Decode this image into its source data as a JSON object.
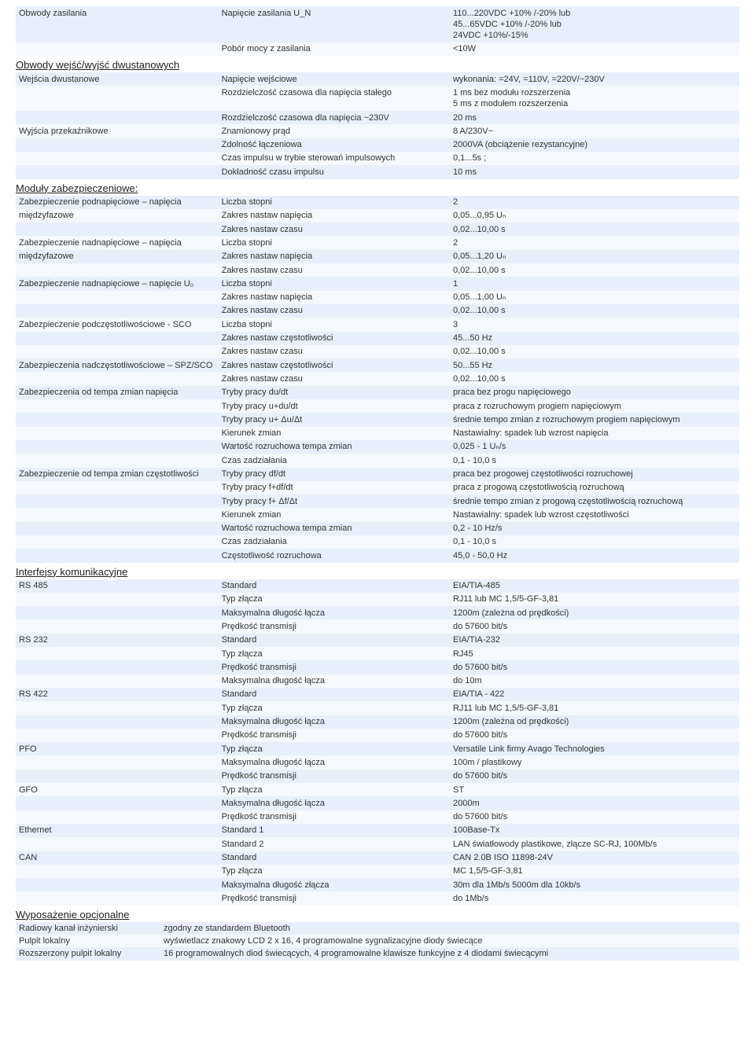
{
  "sections": [
    {
      "title": null,
      "rows": [
        {
          "a": "Obwody zasilania",
          "b": "Napięcie zasilania U_N",
          "c": "110...220VDC +10% /-20% lub\n45...65VDC +10% /-20% lub\n24VDC +10%/-15%"
        },
        {
          "a": "",
          "b": "Pobór mocy z zasilania",
          "c": "<10W"
        }
      ]
    },
    {
      "title": "Obwody wejść/wyjść dwustanowych",
      "rows": [
        {
          "a": "Wejścia dwustanowe",
          "b": "Napięcie wejściowe",
          "c": "wykonania: =24V, =110V, =220V/~230V"
        },
        {
          "a": "",
          "b": "Rozdzielczość czasowa dla napięcia stałego",
          "c": "1 ms bez modułu rozszerzenia\n5 ms z modułem rozszerzenia"
        },
        {
          "a": "",
          "b": "Rozdzielczość czasowa dla napięcia ~230V",
          "c": "20 ms"
        },
        {
          "a": "Wyjścia przekaźnikowe",
          "b": "Znamionowy prąd",
          "c": "8 A/230V~"
        },
        {
          "a": "",
          "b": "Zdolność łączeniowa",
          "c": "2000VA (obciążenie rezystancyjne)"
        },
        {
          "a": "",
          "b": "Czas impulsu w trybie sterowań impulsowych",
          "c": "0,1...5s ;"
        },
        {
          "a": "",
          "b": "Dokładność czasu impulsu",
          "c": "10 ms"
        }
      ]
    },
    {
      "title": "Moduły zabezpieczeniowe:",
      "rows": [
        {
          "a": "Zabezpieczenie podnapięciowe – napięcia",
          "b": "Liczba stopni",
          "c": "2"
        },
        {
          "a": "międzyfazowe",
          "b": "Zakres nastaw napięcia",
          "c": "0,05...0,95 Uₙ"
        },
        {
          "a": "",
          "b": "Zakres nastaw czasu",
          "c": "0,02...10,00 s"
        },
        {
          "a": "Zabezpieczenie nadnapięciowe – napięcia",
          "b": "Liczba stopni",
          "c": "2"
        },
        {
          "a": "międzyfazowe",
          "b": "Zakres nastaw napięcia",
          "c": "0,05...1,20 Uₙ"
        },
        {
          "a": "",
          "b": "Zakres nastaw czasu",
          "c": "0,02...10,00 s"
        },
        {
          "a": "Zabezpieczenie nadnapięciowe – napięcie U₀",
          "b": "Liczba stopni",
          "c": "1"
        },
        {
          "a": "",
          "b": "Zakres nastaw napięcia",
          "c": "0,05...1,00 Uₙ"
        },
        {
          "a": "",
          "b": "Zakres nastaw czasu",
          "c": "0,02...10,00 s"
        },
        {
          "a": "Zabezpieczenie podczęstotliwościowe - SCO",
          "b": "Liczba stopni",
          "c": "3"
        },
        {
          "a": "",
          "b": "Zakres nastaw częstotliwości",
          "c": "45...50 Hz"
        },
        {
          "a": "",
          "b": "Zakres nastaw czasu",
          "c": "0,02...10,00 s"
        },
        {
          "a": "Zabezpieczenia nadczęstotliwościowe – SPZ/SCO",
          "b": "Zakres nastaw częstotliwości",
          "c": "50...55 Hz"
        },
        {
          "a": "",
          "b": "Zakres nastaw czasu",
          "c": "0,02...10,00 s"
        },
        {
          "a": "Zabezpieczenia od tempa zmian napięcia",
          "b": "Tryby pracy du/dt",
          "c": "praca bez progu napięciowego"
        },
        {
          "a": "",
          "b": "Tryby pracy u+du/dt",
          "c": "praca z rozruchowym progiem napięciowym"
        },
        {
          "a": "",
          "b": "Tryby pracy u+ Δu/Δt",
          "c": "średnie tempo zmian z rozruchowym progiem napięciowym"
        },
        {
          "a": "",
          "b": "Kierunek zmian",
          "c": "Nastawialny: spadek lub wzrost napięcia"
        },
        {
          "a": "",
          "b": "Wartość rozruchowa tempa zmian",
          "c": "0,025 - 1 Uₙ/s"
        },
        {
          "a": "",
          "b": "Czas zadziałania",
          "c": "0,1 - 10,0 s"
        },
        {
          "a": "Zabezpieczenie od tempa zmian częstotliwości",
          "b": "Tryby pracy df/dt",
          "c": "praca bez progowej częstotliwości rozruchowej"
        },
        {
          "a": "",
          "b": "Tryby pracy f+df/dt",
          "c": "praca z progową częstotliwością rozruchową"
        },
        {
          "a": "",
          "b": "Tryby pracy f+ Δf/Δt",
          "c": "średnie tempo zmian z progową częstotliwością rozruchową"
        },
        {
          "a": "",
          "b": "Kierunek zmian",
          "c": "Nastawialny: spadek lub wzrost częstotliwości"
        },
        {
          "a": "",
          "b": "Wartość rozruchowa tempa zmian",
          "c": "0,2 - 10 Hz/s"
        },
        {
          "a": "",
          "b": "Czas zadziałania",
          "c": "0,1 - 10,0 s"
        },
        {
          "a": "",
          "b": "Częstotliwość rozruchowa",
          "c": "45,0 - 50,0 Hz"
        }
      ]
    },
    {
      "title": "Interfejsy komunikacyjne",
      "rows": [
        {
          "a": "RS 485",
          "b": "Standard",
          "c": "EIA/TIA-485"
        },
        {
          "a": "",
          "b": "Typ złącza",
          "c": "RJ11 lub MC 1,5/5-GF-3,81"
        },
        {
          "a": "",
          "b": "Maksymalna długość łącza",
          "c": "1200m (zależna od prędkości)"
        },
        {
          "a": "",
          "b": "Prędkość transmisji",
          "c": "do 57600 bit/s"
        },
        {
          "a": "RS 232",
          "b": "Standard",
          "c": "EIA/TIA-232"
        },
        {
          "a": "",
          "b": "Typ złącza",
          "c": "RJ45"
        },
        {
          "a": "",
          "b": "Prędkość transmisji",
          "c": "do 57600 bit/s"
        },
        {
          "a": "",
          "b": "Maksymalna długość łącza",
          "c": "do 10m"
        },
        {
          "a": "RS 422",
          "b": "Standard",
          "c": "EIA/TIA - 422"
        },
        {
          "a": "",
          "b": "Typ złącza",
          "c": "RJ11 lub MC 1,5/5-GF-3,81"
        },
        {
          "a": "",
          "b": "Maksymalna długość łącza",
          "c": "1200m (zależna od prędkości)"
        },
        {
          "a": "",
          "b": "Prędkość transmisji",
          "c": "do 57600 bit/s"
        },
        {
          "a": "PFO",
          "b": "Typ złącza",
          "c": "Versatile Link firmy Avago Technologies"
        },
        {
          "a": "",
          "b": "Maksymalna długość łącza",
          "c": "100m / plastikowy"
        },
        {
          "a": "",
          "b": "Prędkość transmisji",
          "c": "do 57600 bit/s"
        },
        {
          "a": "GFO",
          "b": "Typ złącza",
          "c": "ST"
        },
        {
          "a": "",
          "b": "Maksymalna długość łącza",
          "c": "2000m"
        },
        {
          "a": "",
          "b": "Prędkość transmisji",
          "c": "do 57600 bit/s"
        },
        {
          "a": "Ethernet",
          "b": "Standard 1",
          "c": "100Base-Tx"
        },
        {
          "a": "",
          "b": "Standard 2",
          "c": "LAN światłowody plastikowe, złącze SC-RJ, 100Mb/s"
        },
        {
          "a": "CAN",
          "b": "Standard",
          "c": "CAN 2.0B  ISO 11898-24V"
        },
        {
          "a": "",
          "b": "Typ złącza",
          "c": "MC 1,5/5-GF-3,81"
        },
        {
          "a": "",
          "b": "Maksymalna długość złącza",
          "c": "30m dla 1Mb/s  5000m dla 10kb/s"
        },
        {
          "a": "",
          "b": "Prędkość transmisji",
          "c": "do 1Mb/s"
        }
      ]
    }
  ],
  "footer": {
    "title": "Wyposażenie opcjonalne",
    "rows": [
      {
        "a": "Radiowy kanał inżynierski",
        "b": "zgodny ze standardem Bluetooth"
      },
      {
        "a": "Pulpit lokalny",
        "b": "wyświetlacz znakowy LCD 2 x 16, 4 programowalne sygnalizacyjne diody świecące"
      },
      {
        "a": "Rozszerzony pulpit lokalny",
        "b": "16 programowalnych diod świecących, 4 programowalne klawisze funkcyjne z 4 diodami świecącymi"
      }
    ]
  },
  "colors": {
    "stripe_a": "#e8effb",
    "stripe_b": "#f5f8fc",
    "text": "#333333",
    "title": "#222222"
  }
}
